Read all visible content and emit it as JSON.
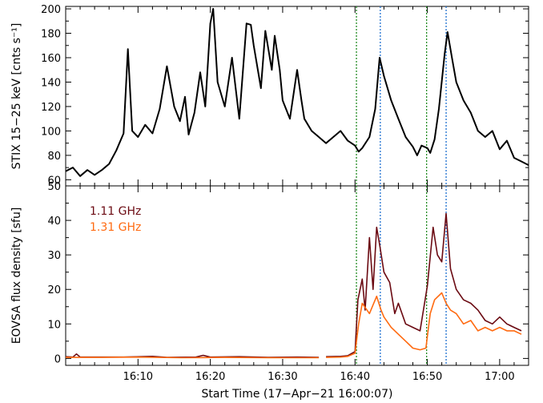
{
  "chart_data": [
    {
      "type": "line",
      "ylabel": "STIX 15−25 keV [cnts s⁻¹]",
      "ylim": [
        55,
        202
      ],
      "yticks": [
        60,
        80,
        100,
        120,
        140,
        160,
        180,
        200
      ],
      "xlim": [
        0,
        64
      ],
      "series": [
        {
          "color": "#000000",
          "points": [
            [
              0,
              67
            ],
            [
              1,
              70
            ],
            [
              2,
              63
            ],
            [
              3,
              68
            ],
            [
              4,
              64
            ],
            [
              5,
              68
            ],
            [
              6,
              73
            ],
            [
              7,
              84
            ],
            [
              8,
              98
            ],
            [
              8.6,
              167
            ],
            [
              9.2,
              100
            ],
            [
              10,
              95
            ],
            [
              11,
              105
            ],
            [
              12,
              98
            ],
            [
              13,
              118
            ],
            [
              14,
              153
            ],
            [
              15,
              120
            ],
            [
              15.8,
              108
            ],
            [
              16.5,
              128
            ],
            [
              17,
              97
            ],
            [
              17.8,
              115
            ],
            [
              18.6,
              148
            ],
            [
              19.3,
              120
            ],
            [
              20,
              188
            ],
            [
              20.4,
              200
            ],
            [
              21,
              140
            ],
            [
              22,
              120
            ],
            [
              23,
              160
            ],
            [
              24,
              110
            ],
            [
              25,
              188
            ],
            [
              25.6,
              187
            ],
            [
              26,
              170
            ],
            [
              27,
              135
            ],
            [
              27.6,
              182
            ],
            [
              28.5,
              150
            ],
            [
              28.9,
              178
            ],
            [
              29.6,
              150
            ],
            [
              30,
              125
            ],
            [
              31,
              110
            ],
            [
              32,
              150
            ],
            [
              32.6,
              125
            ],
            [
              33,
              110
            ],
            [
              34,
              100
            ],
            [
              35,
              95
            ],
            [
              36,
              90
            ],
            [
              37,
              95
            ],
            [
              38,
              100
            ],
            [
              39,
              92
            ],
            [
              40,
              88
            ],
            [
              40.5,
              83
            ],
            [
              41,
              86
            ],
            [
              42,
              95
            ],
            [
              42.8,
              118
            ],
            [
              43.4,
              160
            ],
            [
              44,
              145
            ],
            [
              45,
              125
            ],
            [
              46,
              110
            ],
            [
              47,
              95
            ],
            [
              48,
              87
            ],
            [
              48.6,
              80
            ],
            [
              49.2,
              88
            ],
            [
              50,
              86
            ],
            [
              50.4,
              82
            ],
            [
              51,
              93
            ],
            [
              51.6,
              118
            ],
            [
              52.4,
              163
            ],
            [
              52.8,
              181
            ],
            [
              53.4,
              160
            ],
            [
              54,
              140
            ],
            [
              55,
              125
            ],
            [
              56,
              115
            ],
            [
              57,
              100
            ],
            [
              58,
              95
            ],
            [
              59,
              100
            ],
            [
              60,
              85
            ],
            [
              61,
              92
            ],
            [
              62,
              78
            ],
            [
              63,
              75
            ],
            [
              64,
              72
            ]
          ]
        }
      ],
      "vlines": [
        {
          "x": 40.2,
          "color": "#228b22"
        },
        {
          "x": 43.5,
          "color": "#1e6fd0"
        },
        {
          "x": 49.9,
          "color": "#228b22"
        },
        {
          "x": 52.6,
          "color": "#1e6fd0"
        }
      ]
    },
    {
      "type": "line",
      "xlabel": "Start Time (17−Apr−21 16:00:07)",
      "ylabel": "EOVSA flux density [sfu]",
      "ylim": [
        -2,
        50
      ],
      "yticks": [
        0,
        10,
        20,
        30,
        40,
        50
      ],
      "xlim": [
        0,
        64
      ],
      "xticks": [
        10,
        20,
        30,
        40,
        50,
        60
      ],
      "xtick_labels": [
        "16:10",
        "16:20",
        "16:30",
        "16:40",
        "16:50",
        "17:00"
      ],
      "legend_position": "top-left",
      "series": [
        {
          "name": "1.11 GHz",
          "color": "#6b0a12",
          "segments": [
            [
              [
                0,
                0.5
              ],
              [
                1,
                0.4
              ],
              [
                1.5,
                1.3
              ],
              [
                2,
                0.4
              ],
              [
                8,
                0.4
              ],
              [
                12,
                0.6
              ],
              [
                14,
                0.3
              ],
              [
                18,
                0.4
              ],
              [
                19,
                0.9
              ],
              [
                20,
                0.4
              ],
              [
                24,
                0.5
              ],
              [
                28,
                0.3
              ],
              [
                32,
                0.4
              ],
              [
                35,
                0.3
              ]
            ],
            [
              [
                36,
                0.5
              ],
              [
                38,
                0.6
              ],
              [
                39,
                0.8
              ],
              [
                40,
                2
              ],
              [
                40.4,
                17
              ],
              [
                41,
                23
              ],
              [
                41.4,
                14
              ],
              [
                42,
                35
              ],
              [
                42.5,
                20
              ],
              [
                43,
                38
              ],
              [
                43.4,
                33
              ],
              [
                44,
                25
              ],
              [
                44.8,
                22
              ],
              [
                45.5,
                13
              ],
              [
                46,
                16
              ],
              [
                47,
                10
              ],
              [
                48,
                9
              ],
              [
                49,
                8
              ],
              [
                50,
                21
              ],
              [
                50.8,
                38
              ],
              [
                51.4,
                30
              ],
              [
                52,
                28
              ],
              [
                52.6,
                42
              ],
              [
                53.2,
                26
              ],
              [
                54,
                20
              ],
              [
                55,
                17
              ],
              [
                56,
                16
              ],
              [
                57,
                14
              ],
              [
                58,
                11
              ],
              [
                59,
                10
              ],
              [
                60,
                12
              ],
              [
                61,
                10
              ],
              [
                62,
                9
              ],
              [
                63,
                8
              ]
            ]
          ]
        },
        {
          "name": "1.31 GHz",
          "color": "#ff6a10",
          "segments": [
            [
              [
                0,
                0.3
              ],
              [
                4,
                0.3
              ],
              [
                10,
                0.4
              ],
              [
                16,
                0.2
              ],
              [
                22,
                0.3
              ],
              [
                28,
                0.2
              ],
              [
                35,
                0.2
              ]
            ],
            [
              [
                36,
                0.3
              ],
              [
                38,
                0.4
              ],
              [
                39,
                0.6
              ],
              [
                40,
                1.5
              ],
              [
                40.5,
                10
              ],
              [
                41,
                16
              ],
              [
                42,
                13
              ],
              [
                43,
                18
              ],
              [
                43.6,
                14
              ],
              [
                44,
                12
              ],
              [
                45,
                9
              ],
              [
                46,
                7
              ],
              [
                47,
                5
              ],
              [
                48,
                3
              ],
              [
                49,
                2.5
              ],
              [
                49.8,
                3
              ],
              [
                50.4,
                13
              ],
              [
                51,
                17
              ],
              [
                52,
                19
              ],
              [
                52.6,
                16
              ],
              [
                53.2,
                14
              ],
              [
                54,
                13
              ],
              [
                55,
                10
              ],
              [
                56,
                11
              ],
              [
                57,
                8
              ],
              [
                58,
                9
              ],
              [
                59,
                8
              ],
              [
                60,
                9
              ],
              [
                61,
                8
              ],
              [
                62,
                8
              ],
              [
                63,
                7
              ]
            ],
            [
              [
                64,
                0.5
              ],
              [
                64.6,
                0.5
              ]
            ]
          ]
        }
      ],
      "vlines": [
        {
          "x": 40.2,
          "color": "#228b22"
        },
        {
          "x": 43.5,
          "color": "#1e6fd0"
        },
        {
          "x": 49.9,
          "color": "#228b22"
        },
        {
          "x": 52.6,
          "color": "#1e6fd0"
        }
      ]
    }
  ]
}
